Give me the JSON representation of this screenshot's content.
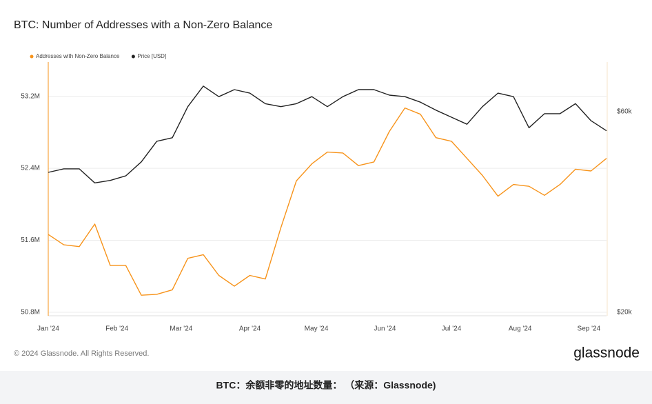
{
  "chart_data": {
    "type": "line",
    "title": "BTC: Number of Addresses with a Non-Zero Balance",
    "categories": [
      null,
      null,
      null,
      null,
      null,
      null,
      null,
      null,
      null,
      null,
      null,
      null,
      null,
      null,
      null,
      null,
      null,
      null,
      null,
      null,
      null,
      null,
      null,
      null,
      null,
      null,
      null,
      null,
      null,
      null,
      null,
      null,
      null,
      null,
      null,
      null,
      null
    ],
    "xticks": [
      {
        "value": 0,
        "label": "Jan '24"
      },
      {
        "value": 4.43,
        "label": "Feb '24"
      },
      {
        "value": 8.57,
        "label": "Mar '24"
      },
      {
        "value": 13,
        "label": "Apr '24"
      },
      {
        "value": 17.29,
        "label": "May '24"
      },
      {
        "value": 21.71,
        "label": "Jun '24"
      },
      {
        "value": 26,
        "label": "Jul '24"
      },
      {
        "value": 30.43,
        "label": "Aug '24"
      },
      {
        "value": 34.86,
        "label": "Sep '24"
      }
    ],
    "ylim": [
      50800000,
      53580000
    ],
    "yticks": [
      {
        "value": 50800000,
        "label": "50.8M"
      },
      {
        "value": 51600000,
        "label": "51.6M"
      },
      {
        "value": 52400000,
        "label": "52.4M"
      },
      {
        "value": 53200000,
        "label": "53.2M"
      }
    ],
    "y2lim": [
      20000,
      69900
    ],
    "y2ticks": [
      {
        "value": 20000,
        "label": "$20k"
      },
      {
        "value": 60000,
        "label": "$60k"
      }
    ],
    "grid": true,
    "series": [
      {
        "name": "Addresses with Non-Zero Balance",
        "color": "#f7931a",
        "values": [
          51665000,
          51550000,
          51530000,
          51780000,
          51320000,
          51320000,
          50990000,
          51000000,
          51050000,
          51400000,
          51440000,
          51210000,
          51090000,
          51210000,
          51170000,
          51740000,
          52260000,
          52450000,
          52580000,
          52570000,
          52430000,
          52470000,
          52810000,
          53070000,
          53000000,
          52740000,
          52700000,
          52510000,
          52320000,
          52090000,
          52220000,
          52200000,
          52100000,
          52220000,
          52390000,
          52370000,
          52510000
        ]
      },
      {
        "name": "Price [USD]",
        "color": "#222222",
        "axis": "y2",
        "values": [
          47900,
          48600,
          48600,
          45800,
          46300,
          47200,
          50000,
          54100,
          54800,
          61000,
          65100,
          63000,
          64400,
          63700,
          61600,
          61000,
          61600,
          63000,
          61000,
          63000,
          64400,
          64400,
          63300,
          63000,
          61900,
          60300,
          58900,
          57500,
          61000,
          63700,
          63000,
          56800,
          59600,
          59600,
          61600,
          58200,
          56200
        ]
      }
    ]
  },
  "footer": {
    "copyright": "© 2024 Glassnode. All Rights Reserved.",
    "logo": "glassnode"
  },
  "caption": "BTC：余额非零的地址数量： （来源：Glassnode)"
}
